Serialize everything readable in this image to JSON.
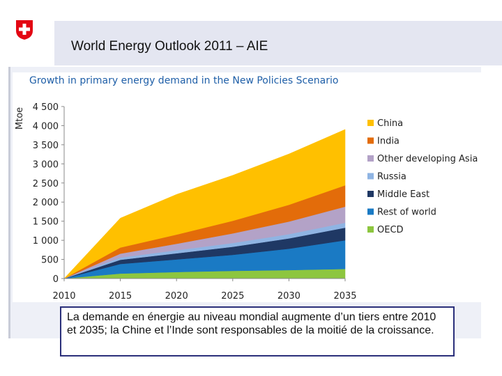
{
  "header": {
    "title": "World Energy Outlook 2011 – AIE"
  },
  "caption": "La demande en énergie au niveau mondial augmente d’un tiers entre 2010 et 2035; la Chine et l’Inde sont responsables de la moitié de la croissance.",
  "chart_data": {
    "type": "area",
    "stacked": true,
    "title": "Growth in primary energy demand in the New Policies Scenario",
    "ylabel": "Mtoe",
    "xlabel": "",
    "x": [
      2010,
      2015,
      2020,
      2025,
      2030,
      2035
    ],
    "xticks": [
      "2010",
      "2015",
      "2020",
      "2025",
      "2030",
      "2035"
    ],
    "yticks": [
      "0",
      "500",
      "1 000",
      "1 500",
      "2 000",
      "2 500",
      "3 000",
      "3 500",
      "4 000",
      "4 500"
    ],
    "ylim": [
      0,
      4500
    ],
    "legend_position": "right",
    "grid": false,
    "series": [
      {
        "name": "OECD",
        "color": "#8dc63f",
        "values": [
          0,
          130,
          170,
          200,
          220,
          250
        ]
      },
      {
        "name": "Rest of world",
        "color": "#1a7ac4",
        "values": [
          0,
          250,
          330,
          420,
          560,
          750
        ]
      },
      {
        "name": "Middle East",
        "color": "#1f3864",
        "values": [
          0,
          110,
          160,
          210,
          270,
          330
        ]
      },
      {
        "name": "Russia",
        "color": "#8fb4e3",
        "values": [
          0,
          60,
          80,
          100,
          110,
          130
        ]
      },
      {
        "name": "Other developing Asia",
        "color": "#b3a2c7",
        "values": [
          0,
          100,
          170,
          250,
          330,
          420
        ]
      },
      {
        "name": "India",
        "color": "#e36c0a",
        "values": [
          0,
          160,
          240,
          330,
          440,
          560
        ]
      },
      {
        "name": "China",
        "color": "#ffc000",
        "values": [
          0,
          770,
          1050,
          1190,
          1330,
          1460
        ]
      }
    ],
    "legend_order": [
      "China",
      "India",
      "Other developing Asia",
      "Russia",
      "Middle East",
      "Rest of world",
      "OECD"
    ]
  }
}
